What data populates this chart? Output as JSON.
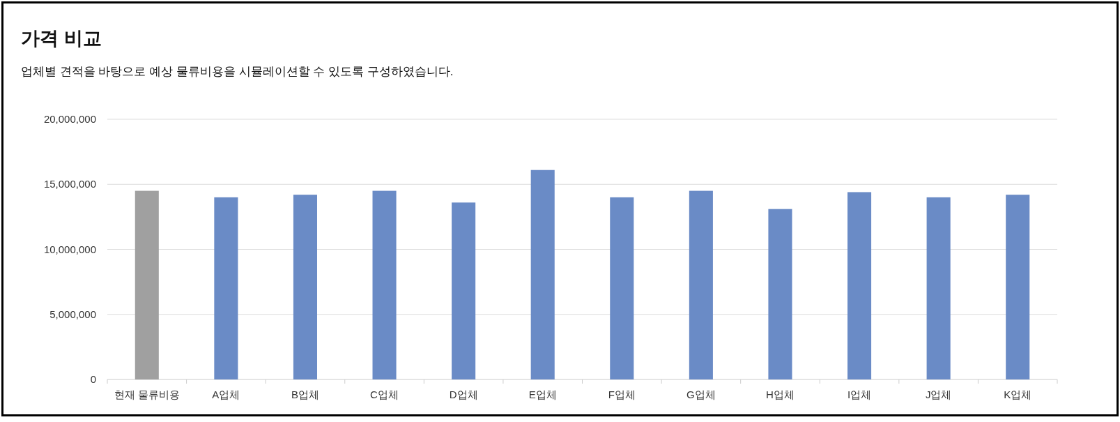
{
  "chart_data": {
    "type": "bar",
    "title": "가격 비교",
    "subtitle": "업체별 견적을 바탕으로 예상 물류비용을 시뮬레이션할 수 있도록 구성하였습니다.",
    "categories": [
      "현재 물류비용",
      "A업체",
      "B업체",
      "C업체",
      "D업체",
      "E업체",
      "F업체",
      "G업체",
      "H업체",
      "I업체",
      "J업체",
      "K업체"
    ],
    "values": [
      14500000,
      14000000,
      14200000,
      14500000,
      13600000,
      16100000,
      14000000,
      14500000,
      13100000,
      14400000,
      14000000,
      14200000
    ],
    "colors": [
      "#a0a0a0",
      "#6a8bc6",
      "#6a8bc6",
      "#6a8bc6",
      "#6a8bc6",
      "#6a8bc6",
      "#6a8bc6",
      "#6a8bc6",
      "#6a8bc6",
      "#6a8bc6",
      "#6a8bc6",
      "#6a8bc6"
    ],
    "ylim": [
      0,
      20000000
    ],
    "yticks": [
      {
        "value": 0,
        "label": "0"
      },
      {
        "value": 5000000,
        "label": "5,000,000"
      },
      {
        "value": 10000000,
        "label": "10,000,000"
      },
      {
        "value": 15000000,
        "label": "15,000,000"
      },
      {
        "value": 20000000,
        "label": "20,000,000"
      }
    ],
    "grid": "y"
  }
}
